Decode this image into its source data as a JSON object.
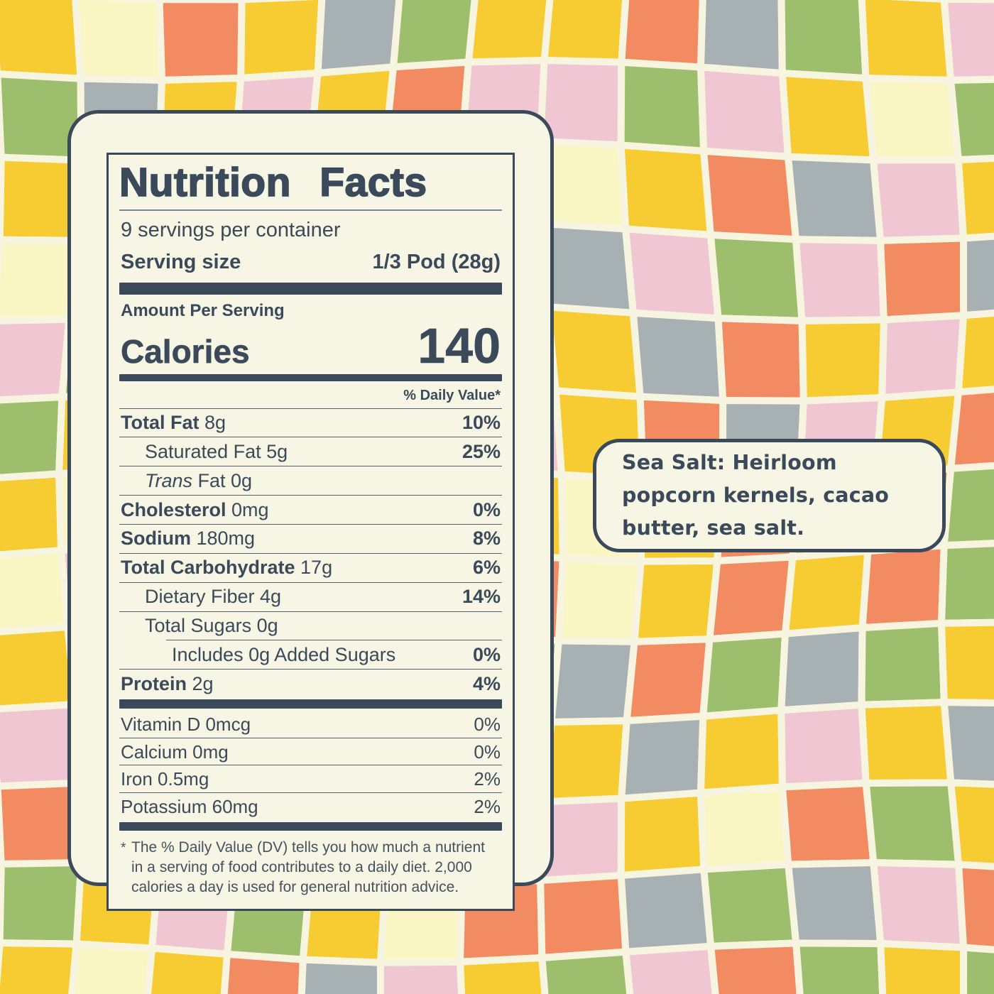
{
  "label": {
    "title": "Nutrition Facts",
    "servings_per_container": "9 servings per container",
    "serving_size_label": "Serving size",
    "serving_size_value": "1/3 Pod (28g)",
    "amount_per_serving": "Amount Per Serving",
    "calories_label": "Calories",
    "calories_value": "140",
    "daily_value_header": "% Daily Value*",
    "nutrients": [
      {
        "bold": "Total Fat",
        "text": "8g",
        "dv": "10%",
        "dv_bold": true,
        "indent": 0
      },
      {
        "text": "Saturated Fat 5g",
        "dv": "25%",
        "dv_bold": true,
        "indent": 1
      },
      {
        "italic": "Trans",
        "text": "Fat 0g",
        "dv": "",
        "indent": 1
      },
      {
        "bold": "Cholesterol",
        "text": "0mg",
        "dv": "0%",
        "dv_bold": true,
        "indent": 0
      },
      {
        "bold": "Sodium",
        "text": "180mg",
        "dv": "8%",
        "dv_bold": true,
        "indent": 0
      },
      {
        "bold": "Total Carbohydrate",
        "text": "17g",
        "dv": "6%",
        "dv_bold": true,
        "indent": 0
      },
      {
        "text": "Dietary Fiber 4g",
        "dv": "14%",
        "dv_bold": true,
        "indent": 1
      },
      {
        "text": "Total Sugars 0g",
        "dv": "",
        "indent": 1
      },
      {
        "text": "Includes 0g Added Sugars",
        "dv": "0%",
        "dv_bold": true,
        "indent": 2,
        "sep_indent": true
      },
      {
        "bold": "Protein",
        "text": "2g",
        "dv": "4%",
        "dv_bold": true,
        "indent": 0
      }
    ],
    "micronutrients": [
      {
        "text": "Vitamin D 0mcg",
        "dv": "0%"
      },
      {
        "text": "Calcium 0mg",
        "dv": "0%"
      },
      {
        "text": "Iron 0.5mg",
        "dv": "2%"
      },
      {
        "text": "Potassium 60mg",
        "dv": "2%"
      }
    ],
    "footnote_asterisk": "*",
    "footnote": "The % Daily Value (DV) tells you how much a nutrient in a serving of food contributes to a daily diet. 2,000 calories a day is used for general nutrition advice."
  },
  "callout": {
    "text": "Sea Salt: Heirloom popcorn kernels, cacao butter, sea salt."
  },
  "colors": {
    "navy": "#3B4A5A",
    "card_cream": "#F7F6E4",
    "background_cream": "#F7F4E0"
  },
  "background": {
    "palette": {
      "Y": "#F6CC32",
      "P": "#FAF6C4",
      "O": "#F28B61",
      "G": "#9DBE6C",
      "K": "#F0C6D3",
      "S": "#A7B0B3"
    },
    "tiles": [
      "YPOYSGYYOSGYK",
      "GSYKYOKKGKYPG",
      "YKGPYKGPYOSKY",
      "PYGOKYGSKGKOS",
      "KGPYGOSYSOYKY",
      "GYKOYSKYOSKYO",
      "YPGYKOYPYOYOG",
      "PKYGSYOPYOYOG",
      "YGKSYKGSOGSGY",
      "KYGOPYGYSYKYS",
      "OGYKGYPKYPOGY",
      "GYKGYPOOSGSKO",
      "YPYOSKYGKOGYG"
    ]
  }
}
